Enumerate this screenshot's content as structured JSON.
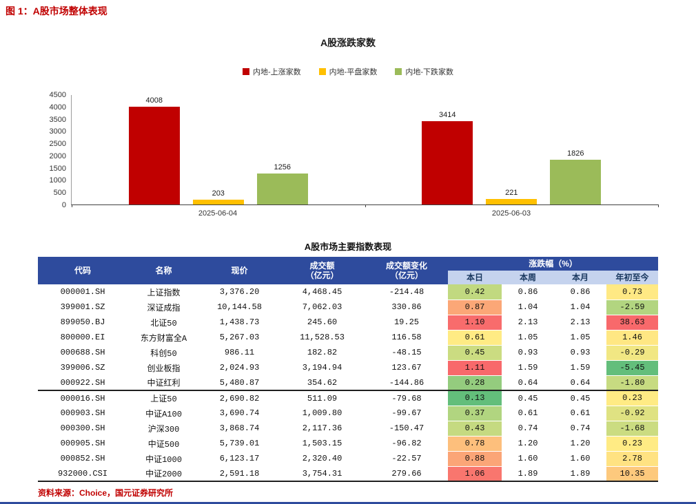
{
  "page": {
    "figure_title": "图 1：A股市场整体表现",
    "source_note": "资料来源：Choice，国元证券研究所",
    "accent_red": "#C00000",
    "footer_bar_color": "#2E4B9D"
  },
  "chart_data": {
    "type": "bar",
    "title": "A股涨跌家数",
    "categories": [
      "2025-06-04",
      "2025-06-03"
    ],
    "series": [
      {
        "name": "内地-上涨家数",
        "color": "#C00000",
        "values": [
          4008,
          3414
        ]
      },
      {
        "name": "内地-平盘家数",
        "color": "#FFC000",
        "values": [
          203,
          221
        ]
      },
      {
        "name": "内地-下跌家数",
        "color": "#9BBB59",
        "values": [
          1256,
          1826
        ]
      }
    ],
    "ylim": [
      0,
      4500
    ],
    "ytick_step": 500,
    "legend_position": "top",
    "grid": false,
    "value_labels": true
  },
  "table": {
    "title": "A股市场主要指数表现",
    "columns": [
      "代码",
      "名称",
      "现价",
      "成交额\n（亿元）",
      "成交额变化\n（亿元）"
    ],
    "group_header": "涨跌幅（%）",
    "sub_columns": [
      "本日",
      "本周",
      "本月",
      "年初至今"
    ],
    "separator_after_index": 6,
    "colors": {
      "header_bg": "#2E4B9D",
      "header_text": "#FFFFFF",
      "subheader_bg": "#C5D3EE",
      "subheader_text": "#17365D",
      "heat_min": "#63BE7B",
      "heat_mid": "#FFEB84",
      "heat_max": "#F8696B"
    },
    "rows": [
      {
        "code": "000001.SH",
        "name": "上证指数",
        "price": "3,376.20",
        "turnover": "4,468.45",
        "turnover_change": "-214.48",
        "day": 0.42,
        "week": 0.86,
        "month": 0.86,
        "ytd": 0.73
      },
      {
        "code": "399001.SZ",
        "name": "深证成指",
        "price": "10,144.58",
        "turnover": "7,062.03",
        "turnover_change": "330.86",
        "day": 0.87,
        "week": 1.04,
        "month": 1.04,
        "ytd": -2.59
      },
      {
        "code": "899050.BJ",
        "name": "北证50",
        "price": "1,438.73",
        "turnover": "245.60",
        "turnover_change": "19.25",
        "day": 1.1,
        "week": 2.13,
        "month": 2.13,
        "ytd": 38.63
      },
      {
        "code": "800000.EI",
        "name": "东方财富全A",
        "price": "5,267.03",
        "turnover": "11,528.53",
        "turnover_change": "116.58",
        "day": 0.61,
        "week": 1.05,
        "month": 1.05,
        "ytd": 1.46
      },
      {
        "code": "000688.SH",
        "name": "科创50",
        "price": "986.11",
        "turnover": "182.82",
        "turnover_change": "-48.15",
        "day": 0.45,
        "week": 0.93,
        "month": 0.93,
        "ytd": -0.29
      },
      {
        "code": "399006.SZ",
        "name": "创业板指",
        "price": "2,024.93",
        "turnover": "3,194.94",
        "turnover_change": "123.67",
        "day": 1.11,
        "week": 1.59,
        "month": 1.59,
        "ytd": -5.45
      },
      {
        "code": "000922.SH",
        "name": "中证红利",
        "price": "5,480.87",
        "turnover": "354.62",
        "turnover_change": "-144.86",
        "day": 0.28,
        "week": 0.64,
        "month": 0.64,
        "ytd": -1.8
      },
      {
        "code": "000016.SH",
        "name": "上证50",
        "price": "2,690.82",
        "turnover": "511.09",
        "turnover_change": "-79.68",
        "day": 0.13,
        "week": 0.45,
        "month": 0.45,
        "ytd": 0.23
      },
      {
        "code": "000903.SH",
        "name": "中证A100",
        "price": "3,690.74",
        "turnover": "1,009.80",
        "turnover_change": "-99.67",
        "day": 0.37,
        "week": 0.61,
        "month": 0.61,
        "ytd": -0.92
      },
      {
        "code": "000300.SH",
        "name": "沪深300",
        "price": "3,868.74",
        "turnover": "2,117.36",
        "turnover_change": "-150.47",
        "day": 0.43,
        "week": 0.74,
        "month": 0.74,
        "ytd": -1.68
      },
      {
        "code": "000905.SH",
        "name": "中证500",
        "price": "5,739.01",
        "turnover": "1,503.15",
        "turnover_change": "-96.82",
        "day": 0.78,
        "week": 1.2,
        "month": 1.2,
        "ytd": 0.23
      },
      {
        "code": "000852.SH",
        "name": "中证1000",
        "price": "6,123.17",
        "turnover": "2,320.40",
        "turnover_change": "-22.57",
        "day": 0.88,
        "week": 1.6,
        "month": 1.6,
        "ytd": 2.78
      },
      {
        "code": "932000.CSI",
        "name": "中证2000",
        "price": "2,591.18",
        "turnover": "3,754.31",
        "turnover_change": "279.66",
        "day": 1.06,
        "week": 1.89,
        "month": 1.89,
        "ytd": 10.35
      }
    ]
  }
}
